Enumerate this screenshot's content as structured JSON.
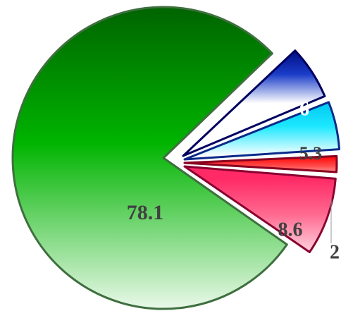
{
  "chart_data": {
    "type": "pie",
    "title": "",
    "exploded": true,
    "slices": [
      {
        "value": 78.1,
        "label": "78.1",
        "colors": {
          "start": "#006400",
          "mid": "#00b400",
          "end": "#e9f8e9",
          "stroke": "#3f6f3f"
        },
        "label_color": "#404040"
      },
      {
        "value": 6,
        "label": "6",
        "colors": {
          "start": "#000d82",
          "mid": "#1a3cc8",
          "end": "#ffffff",
          "stroke": "#000060"
        },
        "label_color": "#ffffff"
      },
      {
        "value": 5.3,
        "label": "5.3",
        "colors": {
          "start": "#00c8f0",
          "mid": "#1de8ff",
          "end": "#ffffff",
          "stroke": "#0a2a8a"
        },
        "label_color": "#404040"
      },
      {
        "value": 2,
        "label": "2",
        "colors": {
          "start": "#ff0000",
          "mid": "#ff5050",
          "end": "#ffe0e6",
          "stroke": "#8a0020"
        },
        "label_color": "#404040"
      },
      {
        "value": 8.6,
        "label": "8.6",
        "colors": {
          "start": "#ff2a66",
          "mid": "#ff6a90",
          "end": "#ffe6ee",
          "stroke": "#8a0030"
        },
        "label_color": "#404040"
      }
    ]
  }
}
